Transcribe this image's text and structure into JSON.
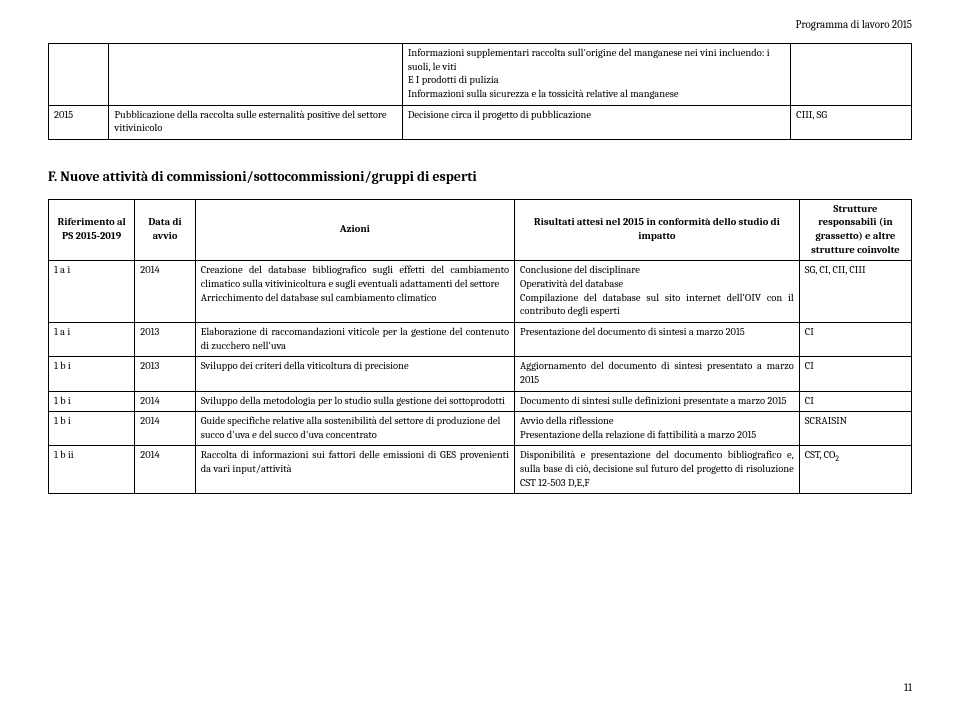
{
  "header": {
    "title": "Programma di lavoro 2015"
  },
  "table1": {
    "row0": {
      "c3a": "Informazioni supplementari raccolta sull'origine del manganese nei vini incluendo: i suoli, le viti",
      "c3b": "E I prodotti di pulizia",
      "c3c": "Informazioni sulla sicurezza e la tossicità relative al manganese"
    },
    "row1": {
      "c1": "2015",
      "c2": "Pubblicazione della raccolta sulle esternalità positive del settore vitivinicolo",
      "c3": "Decisione circa il progetto di pubblicazione",
      "c4": "CIII, SG"
    }
  },
  "section": {
    "title": "F. Nuove attività di commissioni/sottocommissioni/gruppi di esperti"
  },
  "table2": {
    "head": {
      "c1": "Riferimento al PS 2015-2019",
      "c2": "Data di avvio",
      "c3": "Azioni",
      "c4": "Risultati attesi nel 2015 in conformità dello studio di impatto",
      "c5": "Strutture responsabili (in grassetto) e altre strutture coinvolte"
    },
    "r1": {
      "c1": "1 a i",
      "c2": "2014",
      "c3a": "Creazione del database bibliografico sugli effetti del cambiamento climatico sulla vitivinicoltura e sugli eventuali adattamenti del settore",
      "c3b": "Arricchimento del database sul cambiamento climatico",
      "c4a": "Conclusione del disciplinare",
      "c4b": "Operatività del database",
      "c4c": "Compilazione del database sul sito internet dell'OIV con il contributo degli esperti",
      "c5": "SG, CI, CII, CIII"
    },
    "r2": {
      "c1": "1 a i",
      "c2": "2013",
      "c3": "Elaborazione di raccomandazioni viticole per la gestione del contenuto di zucchero nell'uva",
      "c4": "Presentazione del documento di sintesi a marzo 2015",
      "c5": "CI"
    },
    "r3": {
      "c1": "1 b i",
      "c2": "2013",
      "c3": "Sviluppo dei criteri della viticoltura di precisione",
      "c4": "Aggiornamento del documento di sintesi presentato a marzo 2015",
      "c5": "CI"
    },
    "r4": {
      "c1": "1 b i",
      "c2": "2014",
      "c3": "Sviluppo della metodologia per lo studio sulla gestione dei sottoprodotti",
      "c4": "Documento di sintesi sulle definizioni presentate a marzo 2015",
      "c5": "CI"
    },
    "r5": {
      "c1": "1 b i",
      "c2": "2014",
      "c3": "Guide specifiche relative alla sostenibilità del settore di produzione del succo d'uva e del succo d'uva concentrato",
      "c4a": "Avvio della riflessione",
      "c4b": "Presentazione della relazione di fattibilità a marzo 2015",
      "c5": "SCRAISIN"
    },
    "r6": {
      "c1": "1 b ii",
      "c2": "2014",
      "c3": "Raccolta di informazioni sui fattori delle emissioni di GES provenienti da vari input/attività",
      "c4": "Disponibilità e presentazione del documento bibliografico e, sulla base di ciò, decisione sul futuro del progetto di risoluzione CST 12-503 D,E,F",
      "c5": "CST, CO"
    }
  },
  "page": {
    "num": "11"
  }
}
